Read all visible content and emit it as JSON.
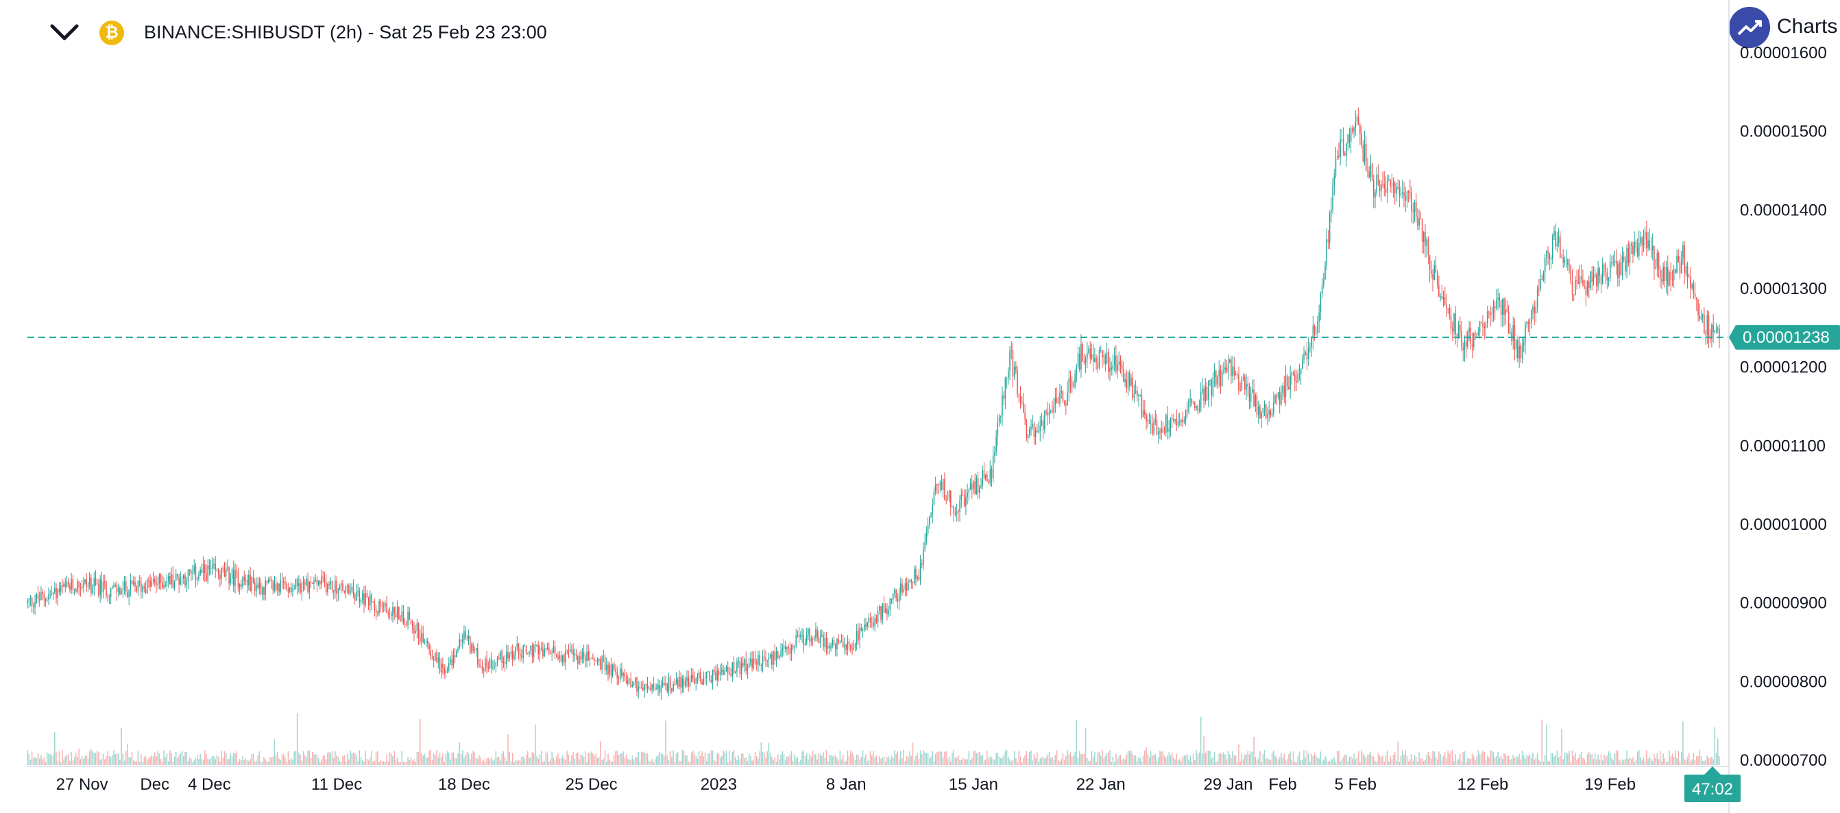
{
  "header": {
    "symbol_title": "BINANCE:SHIBUSDT (2h) - Sat 25 Feb 23 23:00",
    "coin_glyph": "₿",
    "brand_text": "Charts p"
  },
  "icons": {
    "collapse": "chevron-down-icon",
    "coin": "coin-icon",
    "brand": "trend-up-icon"
  },
  "colors": {
    "up": "#26a69a",
    "down": "#ef5350",
    "current_price_line": "#26a69a",
    "brand": "#3a4aa8",
    "coin": "#f0b90b"
  },
  "current_price": {
    "value": 1.238e-05,
    "label": "0.00001238",
    "countdown": "47:02"
  },
  "chart_data": {
    "type": "candlestick",
    "symbol": "BINANCE:SHIBUSDT",
    "interval": "2h",
    "x_range": [
      "2022-11-24",
      "2023-02-25"
    ],
    "ylim": [
      7e-06,
      1.6e-05
    ],
    "y_ticks": [
      "0.00001600",
      "0.00001500",
      "0.00001400",
      "0.00001300",
      "0.00001200",
      "0.00001100",
      "0.00001000",
      "0.00000900",
      "0.00000800",
      "0.00000700"
    ],
    "x_ticks": [
      {
        "label": "27 Nov",
        "x": "2022-11-27"
      },
      {
        "label": "Dec",
        "x": "2022-12-01"
      },
      {
        "label": "4 Dec",
        "x": "2022-12-04"
      },
      {
        "label": "11 Dec",
        "x": "2022-12-11"
      },
      {
        "label": "18 Dec",
        "x": "2022-12-18"
      },
      {
        "label": "25 Dec",
        "x": "2022-12-25"
      },
      {
        "label": "2023",
        "x": "2023-01-01"
      },
      {
        "label": "8 Jan",
        "x": "2023-01-08"
      },
      {
        "label": "15 Jan",
        "x": "2023-01-15"
      },
      {
        "label": "22 Jan",
        "x": "2023-01-22"
      },
      {
        "label": "29 Jan",
        "x": "2023-01-29"
      },
      {
        "label": "Feb",
        "x": "2023-02-01"
      },
      {
        "label": "5 Feb",
        "x": "2023-02-05"
      },
      {
        "label": "12 Feb",
        "x": "2023-02-12"
      },
      {
        "label": "19 Feb",
        "x": "2023-02-19"
      }
    ],
    "price_path": [
      {
        "x": "2022-11-24",
        "y": 9e-06
      },
      {
        "x": "2022-11-27",
        "y": 9.25e-06
      },
      {
        "x": "2022-11-29",
        "y": 9.15e-06
      },
      {
        "x": "2022-12-01",
        "y": 9.25e-06
      },
      {
        "x": "2022-12-04",
        "y": 9.4e-06
      },
      {
        "x": "2022-12-05",
        "y": 9.35e-06
      },
      {
        "x": "2022-12-07",
        "y": 9.2e-06
      },
      {
        "x": "2022-12-10",
        "y": 9.25e-06
      },
      {
        "x": "2022-12-11",
        "y": 9.2e-06
      },
      {
        "x": "2022-12-13",
        "y": 9e-06
      },
      {
        "x": "2022-12-15",
        "y": 8.8e-06
      },
      {
        "x": "2022-12-17",
        "y": 8.1e-06
      },
      {
        "x": "2022-12-18",
        "y": 8.6e-06
      },
      {
        "x": "2022-12-19",
        "y": 8.2e-06
      },
      {
        "x": "2022-12-21",
        "y": 8.4e-06
      },
      {
        "x": "2022-12-25",
        "y": 8.3e-06
      },
      {
        "x": "2022-12-28",
        "y": 7.9e-06
      },
      {
        "x": "2022-12-30",
        "y": 8e-06
      },
      {
        "x": "2023-01-01",
        "y": 8.1e-06
      },
      {
        "x": "2023-01-04",
        "y": 8.3e-06
      },
      {
        "x": "2023-01-06",
        "y": 8.6e-06
      },
      {
        "x": "2023-01-08",
        "y": 8.4e-06
      },
      {
        "x": "2023-01-10",
        "y": 8.9e-06
      },
      {
        "x": "2023-01-12",
        "y": 9.4e-06
      },
      {
        "x": "2023-01-13",
        "y": 1.06e-05
      },
      {
        "x": "2023-01-14",
        "y": 1.02e-05
      },
      {
        "x": "2023-01-16",
        "y": 1.07e-05
      },
      {
        "x": "2023-01-17",
        "y": 1.22e-05
      },
      {
        "x": "2023-01-18",
        "y": 1.11e-05
      },
      {
        "x": "2023-01-20",
        "y": 1.16e-05
      },
      {
        "x": "2023-01-21",
        "y": 1.22e-05
      },
      {
        "x": "2023-01-23",
        "y": 1.2e-05
      },
      {
        "x": "2023-01-25",
        "y": 1.12e-05
      },
      {
        "x": "2023-01-27",
        "y": 1.15e-05
      },
      {
        "x": "2023-01-29",
        "y": 1.2e-05
      },
      {
        "x": "2023-01-31",
        "y": 1.14e-05
      },
      {
        "x": "2023-02-02",
        "y": 1.2e-05
      },
      {
        "x": "2023-02-03",
        "y": 1.27e-05
      },
      {
        "x": "2023-02-04",
        "y": 1.47e-05
      },
      {
        "x": "2023-02-05",
        "y": 1.51e-05
      },
      {
        "x": "2023-02-06",
        "y": 1.43e-05
      },
      {
        "x": "2023-02-08",
        "y": 1.42e-05
      },
      {
        "x": "2023-02-10",
        "y": 1.27e-05
      },
      {
        "x": "2023-02-11",
        "y": 1.23e-05
      },
      {
        "x": "2023-02-13",
        "y": 1.28e-05
      },
      {
        "x": "2023-02-14",
        "y": 1.22e-05
      },
      {
        "x": "2023-02-16",
        "y": 1.37e-05
      },
      {
        "x": "2023-02-17",
        "y": 1.3e-05
      },
      {
        "x": "2023-02-19",
        "y": 1.32e-05
      },
      {
        "x": "2023-02-21",
        "y": 1.36e-05
      },
      {
        "x": "2023-02-22",
        "y": 1.31e-05
      },
      {
        "x": "2023-02-23",
        "y": 1.34e-05
      },
      {
        "x": "2023-02-24",
        "y": 1.26e-05
      },
      {
        "x": "2023-02-25",
        "y": 1.238e-05
      }
    ]
  }
}
